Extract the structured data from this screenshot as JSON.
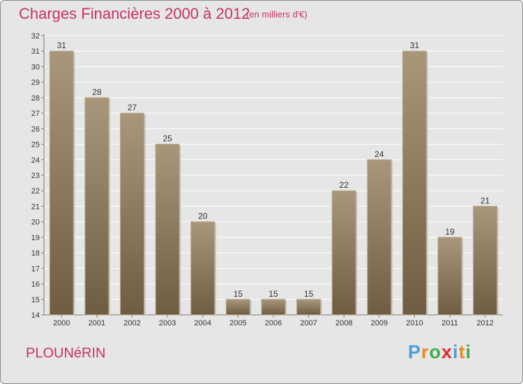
{
  "header": {
    "title": "Charges Financières 2000 à 2012",
    "subtitle": "(en milliers d'€)"
  },
  "footer": {
    "town": "PLOUNéRIN",
    "logo": "Proxiti"
  },
  "colors": {
    "title": "#c8335f",
    "bar_top": "#a8977a",
    "bar_bottom": "#6f5d43",
    "background": "#e6e6e6"
  },
  "chart_data": {
    "type": "bar",
    "title": "Charges Financières 2000 à 2012",
    "subtitle": "(en milliers d'€)",
    "xlabel": "",
    "ylabel": "",
    "categories": [
      "2000",
      "2001",
      "2002",
      "2003",
      "2004",
      "2005",
      "2006",
      "2007",
      "2008",
      "2009",
      "2010",
      "2011",
      "2012"
    ],
    "values": [
      31,
      28,
      27,
      25,
      20,
      15,
      15,
      15,
      22,
      24,
      31,
      19,
      21
    ],
    "ylim": [
      14,
      32
    ],
    "yticks": [
      14,
      15,
      16,
      17,
      18,
      19,
      20,
      21,
      22,
      23,
      24,
      25,
      26,
      27,
      28,
      29,
      30,
      31,
      32
    ],
    "grid": true,
    "legend": "none"
  }
}
